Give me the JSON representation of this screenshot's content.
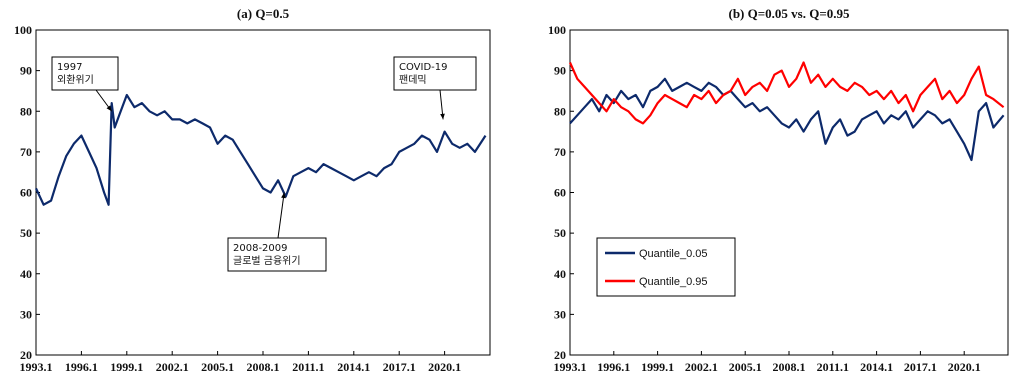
{
  "chart_data": [
    {
      "type": "line",
      "title": "(a)  Q=0.5",
      "xlabel": "",
      "ylabel": "",
      "ylim": [
        20,
        100
      ],
      "yticks": [
        20,
        30,
        40,
        50,
        60,
        70,
        80,
        90,
        100
      ],
      "xlim": [
        1993.0,
        2023.0
      ],
      "xtick_labels": [
        "1993.1",
        "1996.1",
        "1999.1",
        "2002.1",
        "2005.1",
        "2008.1",
        "2011.1",
        "2014.1",
        "2017.1",
        "2020.1"
      ],
      "xtick_values": [
        1993.0,
        1996.0,
        1999.0,
        2002.0,
        2005.0,
        2008.0,
        2011.0,
        2014.0,
        2017.0,
        2020.0
      ],
      "grid": false,
      "series": [
        {
          "name": "",
          "color": "#0d2a6b",
          "x": [
            1993.0,
            1993.5,
            1994.0,
            1994.5,
            1995.0,
            1995.5,
            1996.0,
            1996.5,
            1997.0,
            1997.5,
            1997.8,
            1998.0,
            1998.2,
            1998.5,
            1999.0,
            1999.5,
            2000.0,
            2000.5,
            2001.0,
            2001.5,
            2002.0,
            2002.5,
            2003.0,
            2003.5,
            2004.0,
            2004.5,
            2005.0,
            2005.5,
            2006.0,
            2006.5,
            2007.0,
            2007.5,
            2008.0,
            2008.5,
            2009.0,
            2009.5,
            2010.0,
            2010.5,
            2011.0,
            2011.5,
            2012.0,
            2012.5,
            2013.0,
            2013.5,
            2014.0,
            2014.5,
            2015.0,
            2015.5,
            2016.0,
            2016.5,
            2017.0,
            2017.5,
            2018.0,
            2018.5,
            2019.0,
            2019.5,
            2020.0,
            2020.5,
            2021.0,
            2021.5,
            2022.0,
            2022.7
          ],
          "values": [
            61,
            57,
            58,
            64,
            69,
            72,
            74,
            70,
            66,
            60,
            57,
            82,
            76,
            79,
            84,
            81,
            82,
            80,
            79,
            80,
            78,
            78,
            77,
            78,
            77,
            76,
            72,
            74,
            73,
            70,
            67,
            64,
            61,
            60,
            63,
            59,
            64,
            65,
            66,
            65,
            67,
            66,
            65,
            64,
            63,
            64,
            65,
            64,
            66,
            67,
            70,
            71,
            72,
            74,
            73,
            70,
            75,
            72,
            71,
            72,
            70,
            74
          ]
        }
      ],
      "annotations": [
        {
          "lines": [
            "1997",
            "외환위기"
          ],
          "target": [
            1998.0,
            80
          ]
        },
        {
          "lines": [
            "2008-2009",
            "글로벌 금융위기"
          ],
          "target": [
            2009.4,
            60
          ]
        },
        {
          "lines": [
            "COVID-19",
            "팬데믹"
          ],
          "target": [
            2019.9,
            78
          ]
        }
      ]
    },
    {
      "type": "line",
      "title": "(b)  Q=0.05 vs.  Q=0.95",
      "xlabel": "",
      "ylabel": "",
      "ylim": [
        20,
        100
      ],
      "yticks": [
        20,
        30,
        40,
        50,
        60,
        70,
        80,
        90,
        100
      ],
      "xlim": [
        1993.0,
        2023.0
      ],
      "xtick_labels": [
        "1993.1",
        "1996.1",
        "1999.1",
        "2002.1",
        "2005.1",
        "2008.1",
        "2011.1",
        "2014.1",
        "2017.1",
        "2020.1"
      ],
      "xtick_values": [
        1993.0,
        1996.0,
        1999.0,
        2002.0,
        2005.0,
        2008.0,
        2011.0,
        2014.0,
        2017.0,
        2020.0
      ],
      "grid": false,
      "legend": "center-left",
      "series": [
        {
          "name": "Quantile_0.05",
          "color": "#0d2a6b",
          "x": [
            1993.0,
            1993.5,
            1994.0,
            1994.5,
            1995.0,
            1995.5,
            1996.0,
            1996.5,
            1997.0,
            1997.5,
            1998.0,
            1998.5,
            1999.0,
            1999.5,
            2000.0,
            2000.5,
            2001.0,
            2001.5,
            2002.0,
            2002.5,
            2003.0,
            2003.5,
            2004.0,
            2004.5,
            2005.0,
            2005.5,
            2006.0,
            2006.5,
            2007.0,
            2007.5,
            2008.0,
            2008.5,
            2009.0,
            2009.5,
            2010.0,
            2010.5,
            2011.0,
            2011.5,
            2012.0,
            2012.5,
            2013.0,
            2013.5,
            2014.0,
            2014.5,
            2015.0,
            2015.5,
            2016.0,
            2016.5,
            2017.0,
            2017.5,
            2018.0,
            2018.5,
            2019.0,
            2019.5,
            2020.0,
            2020.5,
            2021.0,
            2021.5,
            2022.0,
            2022.7
          ],
          "values": [
            77,
            79,
            81,
            83,
            80,
            84,
            82,
            85,
            83,
            84,
            81,
            85,
            86,
            88,
            85,
            86,
            87,
            86,
            85,
            87,
            86,
            84,
            85,
            83,
            81,
            82,
            80,
            81,
            79,
            77,
            76,
            78,
            75,
            78,
            80,
            72,
            76,
            78,
            74,
            75,
            78,
            79,
            80,
            77,
            79,
            78,
            80,
            76,
            78,
            80,
            79,
            77,
            78,
            75,
            72,
            68,
            80,
            82,
            76,
            79
          ]
        },
        {
          "name": "Quantile_0.95",
          "color": "#ff0000",
          "x": [
            1993.0,
            1993.5,
            1994.0,
            1994.5,
            1995.0,
            1995.5,
            1996.0,
            1996.5,
            1997.0,
            1997.5,
            1998.0,
            1998.5,
            1999.0,
            1999.5,
            2000.0,
            2000.5,
            2001.0,
            2001.5,
            2002.0,
            2002.5,
            2003.0,
            2003.5,
            2004.0,
            2004.5,
            2005.0,
            2005.5,
            2006.0,
            2006.5,
            2007.0,
            2007.5,
            2008.0,
            2008.5,
            2009.0,
            2009.5,
            2010.0,
            2010.5,
            2011.0,
            2011.5,
            2012.0,
            2012.5,
            2013.0,
            2013.5,
            2014.0,
            2014.5,
            2015.0,
            2015.5,
            2016.0,
            2016.5,
            2017.0,
            2017.5,
            2018.0,
            2018.5,
            2019.0,
            2019.5,
            2020.0,
            2020.5,
            2021.0,
            2021.5,
            2022.0,
            2022.7
          ],
          "values": [
            92,
            88,
            86,
            84,
            82,
            80,
            83,
            81,
            80,
            78,
            77,
            79,
            82,
            84,
            83,
            82,
            81,
            84,
            83,
            85,
            82,
            84,
            85,
            88,
            84,
            86,
            87,
            85,
            89,
            90,
            86,
            88,
            92,
            87,
            89,
            86,
            88,
            86,
            85,
            87,
            86,
            84,
            85,
            83,
            85,
            82,
            84,
            80,
            84,
            86,
            88,
            83,
            85,
            82,
            84,
            88,
            91,
            84,
            83,
            81
          ]
        }
      ]
    }
  ]
}
